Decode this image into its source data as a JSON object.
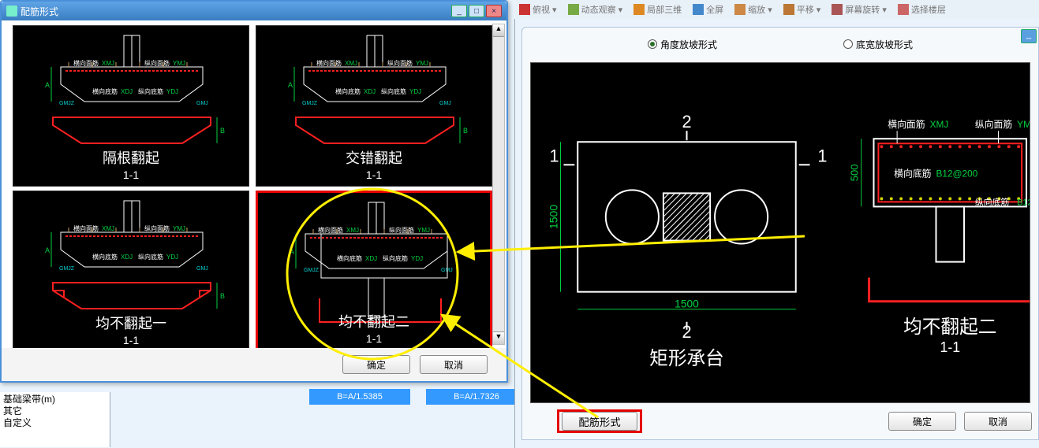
{
  "bg_toolbar": [
    "俯视 ▾",
    "动态观察 ▾",
    "局部三维",
    "全屏",
    "缩放 ▾",
    "平移 ▾",
    "屏幕旋转 ▾",
    "选择楼层"
  ],
  "dialog": {
    "title": "配筋形式",
    "ok": "确定",
    "cancel": "取消",
    "thumbs": [
      {
        "caption": "隔根翻起",
        "sub": "1-1"
      },
      {
        "caption": "交错翻起",
        "sub": "1-1"
      },
      {
        "caption": "均不翻起一",
        "sub": "1-1"
      },
      {
        "caption": "均不翻起二",
        "sub": "1-1"
      }
    ],
    "sel_index": 3
  },
  "ratios": [
    "B=A/1.5385",
    "B=A/1.7326"
  ],
  "tree_items": [
    "基础梁带(m)",
    "其它",
    "自定义"
  ],
  "right": {
    "radio_a": "角度放坡形式",
    "radio_b": "底宽放坡形式",
    "radio_sel": "a",
    "cfg_btn": "配筋形式",
    "ok": "确定",
    "cancel": "取消",
    "plan": {
      "title": "矩形承台",
      "dim_w": "1500",
      "dim_h": "1500",
      "marks": [
        "1",
        "2",
        "1",
        "2"
      ]
    },
    "section": {
      "title": "均不翻起二",
      "sub": "1-1",
      "hmj_lbl": "横向面筋",
      "hmj_code": "XMJ",
      "zmj_lbl": "纵向面筋",
      "zmj_code": "YMJ",
      "hdj_lbl": "横向底筋",
      "hdj_code": "B12@200",
      "zdj_lbl": "纵向底筋",
      "zdj_code": "B12@2",
      "gj_lbl": "箍筋",
      "dim_h": "500"
    }
  },
  "scheme": {
    "colors": {
      "red": "#ff2020",
      "green": "#00d040",
      "white": "#ffffff",
      "cyan": "#00d0d0",
      "yellow_arrow": "#ffee00",
      "pale": "#c8a060"
    },
    "section_scheme": {
      "outline": "#ffffff",
      "rebar_line": "#ff2020",
      "rebar_dot": "#ff2020",
      "yellow_dot": "#d0d000",
      "dim": "#00d040",
      "dim2": "#00d0d0"
    }
  }
}
